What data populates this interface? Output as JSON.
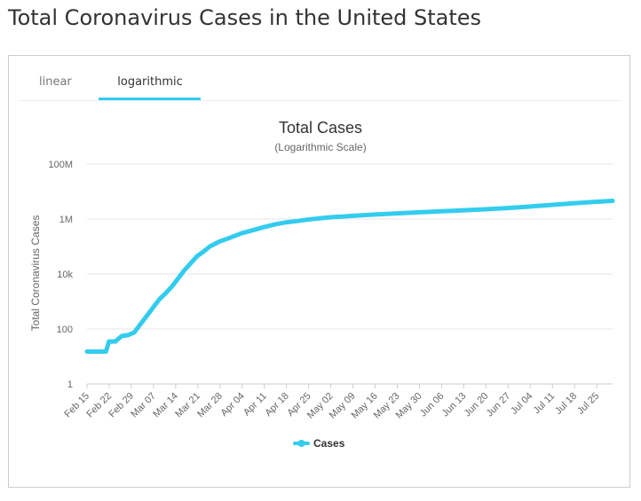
{
  "page": {
    "title": "Total Coronavirus Cases in the United States"
  },
  "tabs": [
    {
      "label": "linear",
      "active": false
    },
    {
      "label": "logarithmic",
      "active": true
    }
  ],
  "colors": {
    "accent": "#33ccee",
    "series": "#33ccee",
    "text": "#333333",
    "grid": "#e6e6e6"
  },
  "chart_data": {
    "type": "line",
    "title": "Total Cases",
    "subtitle": "(Logarithmic Scale)",
    "ylabel": "Total Coronavirus Cases",
    "xlabel": "",
    "yscale": "log",
    "ylim": [
      1,
      100000000
    ],
    "ytick_labels": [
      "100M",
      "1M",
      "10k",
      "100",
      "1"
    ],
    "ytick_values": [
      100000000,
      1000000,
      10000,
      100,
      1
    ],
    "xtick_labels": [
      "Feb 15",
      "Feb 22",
      "Feb 29",
      "Mar 07",
      "Mar 14",
      "Mar 21",
      "Mar 28",
      "Apr 04",
      "Apr 11",
      "Apr 18",
      "Apr 25",
      "May 02",
      "May 09",
      "May 16",
      "May 23",
      "May 30",
      "Jun 06",
      "Jun 13",
      "Jun 20",
      "Jun 27",
      "Jul 04",
      "Jul 11",
      "Jul 18",
      "Jul 25"
    ],
    "xlim": [
      "2020-02-15",
      "2020-07-31"
    ],
    "grid": true,
    "legend": "bottom",
    "series": [
      {
        "name": "Cases",
        "x": [
          "2020-02-15",
          "2020-02-18",
          "2020-02-20",
          "2020-02-21",
          "2020-02-22",
          "2020-02-23",
          "2020-02-24",
          "2020-02-26",
          "2020-02-28",
          "2020-03-01",
          "2020-03-03",
          "2020-03-05",
          "2020-03-07",
          "2020-03-09",
          "2020-03-11",
          "2020-03-13",
          "2020-03-15",
          "2020-03-17",
          "2020-03-19",
          "2020-03-21",
          "2020-03-23",
          "2020-03-25",
          "2020-03-28",
          "2020-03-31",
          "2020-04-04",
          "2020-04-08",
          "2020-04-11",
          "2020-04-15",
          "2020-04-18",
          "2020-04-22",
          "2020-04-25",
          "2020-05-02",
          "2020-05-09",
          "2020-05-16",
          "2020-05-23",
          "2020-05-30",
          "2020-06-06",
          "2020-06-13",
          "2020-06-20",
          "2020-06-27",
          "2020-07-04",
          "2020-07-11",
          "2020-07-18",
          "2020-07-25",
          "2020-07-31"
        ],
        "y": [
          15,
          15,
          15,
          15,
          35,
          35,
          35,
          55,
          60,
          75,
          150,
          300,
          600,
          1200,
          2000,
          3500,
          7000,
          14000,
          25000,
          45000,
          65000,
          100000,
          150000,
          200000,
          300000,
          400000,
          500000,
          650000,
          750000,
          850000,
          950000,
          1150000,
          1300000,
          1450000,
          1600000,
          1750000,
          1900000,
          2050000,
          2250000,
          2500000,
          2800000,
          3200000,
          3700000,
          4200000,
          4600000
        ]
      }
    ]
  }
}
